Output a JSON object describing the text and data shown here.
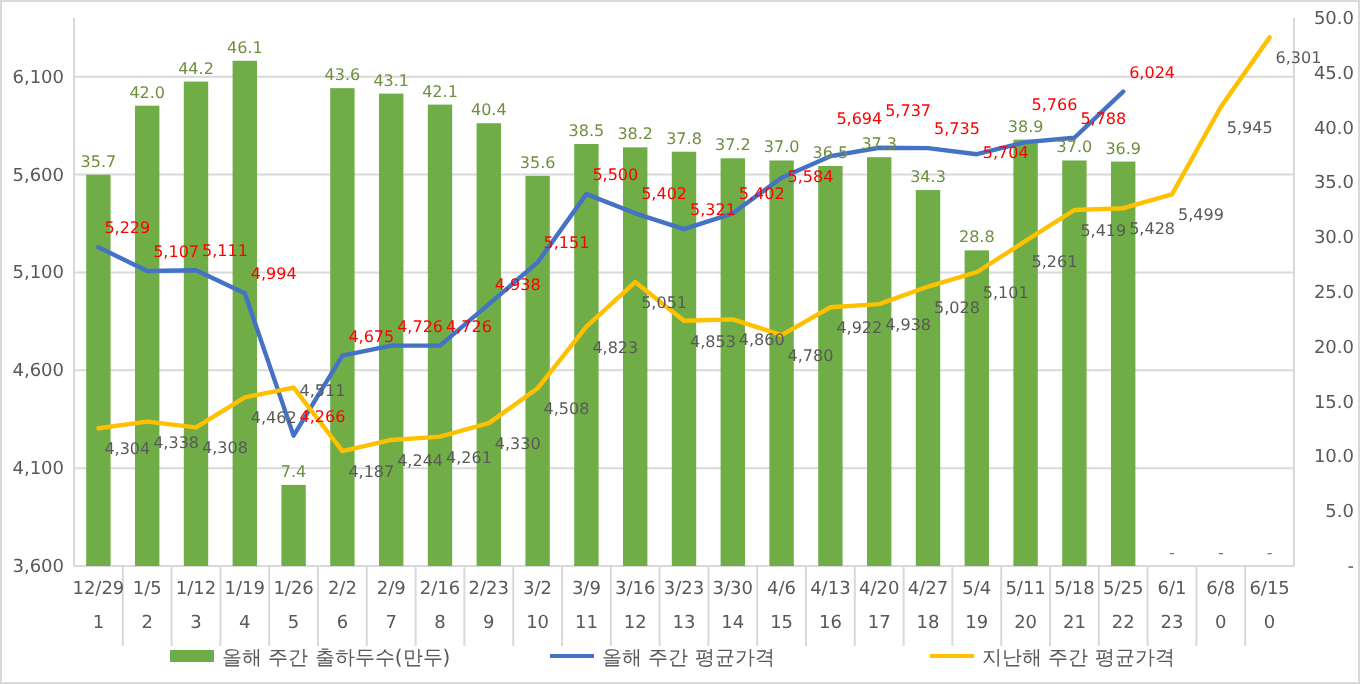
{
  "chart_data": {
    "type": "bar",
    "categories": [
      "12/29\n1",
      "1/5\n2",
      "1/12\n3",
      "1/19\n4",
      "1/26\n5",
      "2/2\n6",
      "2/9\n7",
      "2/16\n8",
      "2/23\n9",
      "3/2\n10",
      "3/9\n11",
      "3/16\n12",
      "3/23\n13",
      "3/30\n14",
      "4/6\n15",
      "4/13\n16",
      "4/20\n17",
      "4/27\n18",
      "5/4\n19",
      "5/11\n20",
      "5/18\n21",
      "5/25\n22",
      "6/1\n23",
      "6/8\n0",
      "6/15\n0"
    ],
    "series": [
      {
        "name": "올해 주간 출하두수(만두)",
        "axis": "y2",
        "color": "#70ad47",
        "values": [
          35.7,
          42.0,
          44.2,
          46.1,
          7.4,
          43.6,
          43.1,
          42.1,
          40.4,
          35.6,
          38.5,
          38.2,
          37.8,
          37.2,
          37.0,
          36.5,
          37.3,
          34.3,
          28.8,
          38.9,
          37.0,
          36.9,
          0,
          0,
          0
        ],
        "value_labels": [
          "35.7",
          "42.0",
          "44.2",
          "46.1",
          "7.4",
          "43.6",
          "43.1",
          "42.1",
          "40.4",
          "35.6",
          "38.5",
          "38.2",
          "37.8",
          "37.2",
          "37.0",
          "36.5",
          "37.3",
          "34.3",
          "28.8",
          "38.9",
          "37.0",
          "36.9",
          "-",
          "-",
          "-"
        ]
      },
      {
        "name": "올해 주간 평균가격",
        "type": "line",
        "color": "#4472c4",
        "values": [
          5229,
          5107,
          5111,
          4994,
          4266,
          4675,
          4726,
          4726,
          4938,
          5151,
          5500,
          5402,
          5321,
          5402,
          5584,
          5694,
          5737,
          5735,
          5704,
          5766,
          5788,
          6024,
          null,
          null,
          null
        ],
        "value_labels": [
          "5,229",
          "5,107",
          "5,111",
          "4,994",
          "4,266",
          "4,675",
          "4,726",
          "4,726",
          "4,938",
          "5,151",
          "5,500",
          "5,402",
          "5,321",
          "5,402",
          "5,584",
          "5,694",
          "5,737",
          "5,735",
          "5,704",
          "5,766",
          "5,788",
          "6,024",
          null,
          null,
          null
        ]
      },
      {
        "name": "지난해 주간 평균가격",
        "type": "line",
        "color": "#ffc000",
        "values": [
          4304,
          4338,
          4308,
          4462,
          4511,
          4187,
          4244,
          4261,
          4330,
          4508,
          4823,
          5051,
          4853,
          4860,
          4780,
          4922,
          4938,
          5028,
          5101,
          5261,
          5419,
          5428,
          5499,
          5945,
          6301
        ],
        "value_labels": [
          "4,304",
          "4,338",
          "4,308",
          "4,462",
          "4,511",
          "4,187",
          "4,244",
          "4,261",
          "4,330",
          "4,508",
          "4,823",
          "5,051",
          "4,853",
          "4,860",
          "4,780",
          "4,922",
          "4,938",
          "5,028",
          "5,101",
          "5,261",
          "5,419",
          "5,428",
          "5,499",
          "5,945",
          "6,301"
        ]
      }
    ],
    "ylim": [
      3600,
      6400
    ],
    "yticks": [
      {
        "value": 3600,
        "label": "3,600"
      },
      {
        "value": 4100,
        "label": "4,100"
      },
      {
        "value": 4600,
        "label": "4,600"
      },
      {
        "value": 5100,
        "label": "5,100"
      },
      {
        "value": 5600,
        "label": "5,600"
      },
      {
        "value": 6100,
        "label": "6,100"
      }
    ],
    "y2lim": [
      0,
      50
    ],
    "y2ticks": [
      {
        "value": 0,
        "label": "-"
      },
      {
        "value": 5,
        "label": "5.0"
      },
      {
        "value": 10,
        "label": "10.0"
      },
      {
        "value": 15,
        "label": "15.0"
      },
      {
        "value": 20,
        "label": "20.0"
      },
      {
        "value": 25,
        "label": "25.0"
      },
      {
        "value": 30,
        "label": "30.0"
      },
      {
        "value": 35,
        "label": "35.0"
      },
      {
        "value": 40,
        "label": "40.0"
      },
      {
        "value": 45,
        "label": "45.0"
      },
      {
        "value": 50,
        "label": "50.0"
      }
    ],
    "grid": "y",
    "legend": "bottom"
  }
}
